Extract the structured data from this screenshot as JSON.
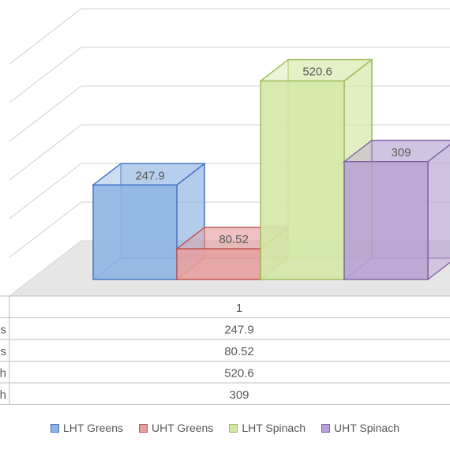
{
  "chart_data": {
    "type": "bar",
    "categories": [
      "1"
    ],
    "series": [
      {
        "name": "LHT Greens",
        "short": "s",
        "values": [
          247.9
        ],
        "color": "#8EB4E3",
        "edge": "#4472C4"
      },
      {
        "name": "UHT Greens",
        "short": "s",
        "values": [
          80.52
        ],
        "color": "#E6A0A0",
        "edge": "#C0504D"
      },
      {
        "name": "LHT Spinach",
        "short": "h",
        "values": [
          520.6
        ],
        "color": "#D4E8A6",
        "edge": "#9BBB59"
      },
      {
        "name": "UHT Spinach",
        "short": "h",
        "values": [
          309
        ],
        "color": "#B7A3D3",
        "edge": "#8064A2"
      }
    ],
    "ylim": [
      0,
      600
    ],
    "grid": true,
    "legend": "bottom",
    "data_table": true
  }
}
